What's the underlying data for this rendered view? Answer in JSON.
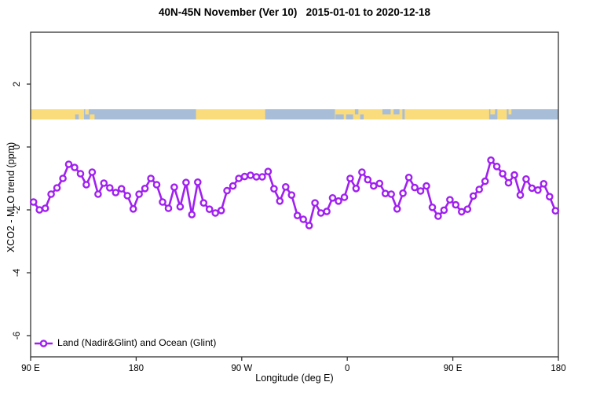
{
  "title": "40N-45N November (Ver 10)   2015-01-01 to 2020-12-18",
  "chart_data": {
    "type": "line",
    "title": "40N-45N November (Ver 10)   2015-01-01 to 2020-12-18",
    "xlabel": "Longitude (deg E)",
    "ylabel": "XCO2 - MLO trend (ppm)",
    "xlim": [
      90,
      540
    ],
    "ylim": [
      -6.675,
      3.65
    ],
    "grid": false,
    "x_ticks": [
      {
        "pos": 90,
        "label": "90 E"
      },
      {
        "pos": 180,
        "label": "180"
      },
      {
        "pos": 270,
        "label": "90 W"
      },
      {
        "pos": 360,
        "label": "0"
      },
      {
        "pos": 450,
        "label": "90 E"
      },
      {
        "pos": 540,
        "label": "180"
      }
    ],
    "y_ticks": [
      {
        "pos": 2,
        "label": "2"
      },
      {
        "pos": 0,
        "label": "0"
      },
      {
        "pos": -2,
        "label": "-2"
      },
      {
        "pos": -4,
        "label": "-4"
      },
      {
        "pos": -6,
        "label": "-6"
      }
    ],
    "legend": {
      "label": "Land (Nadir&Glint) and Ocean (Glint)",
      "position": "bottom-left"
    },
    "series_color": "#A020F0",
    "marker": "open-circle",
    "series": [
      {
        "name": "Land (Nadir&Glint) and Ocean (Glint)",
        "x": [
          92.5,
          97.5,
          102.5,
          107.5,
          112.5,
          117.5,
          122.5,
          127.5,
          132.5,
          137.5,
          142.5,
          147.5,
          152.5,
          157.5,
          162.5,
          167.5,
          172.5,
          177.5,
          182.5,
          187.5,
          192.5,
          197.5,
          202.5,
          207.5,
          212.5,
          217.5,
          222.5,
          227.5,
          232.5,
          237.5,
          242.5,
          247.5,
          252.5,
          257.5,
          262.5,
          267.5,
          272.5,
          277.5,
          282.5,
          287.5,
          292.5,
          297.5,
          302.5,
          307.5,
          312.5,
          317.5,
          322.5,
          327.5,
          332.5,
          337.5,
          342.5,
          347.5,
          352.5,
          357.5,
          362.5,
          367.5,
          372.5,
          377.5,
          382.5,
          387.5,
          392.5,
          397.5,
          402.5,
          407.5,
          412.5,
          417.5,
          422.5,
          427.5,
          432.5,
          437.5,
          442.5,
          447.5,
          452.5,
          457.5,
          462.5,
          467.5,
          472.5,
          477.5,
          482.5,
          487.5,
          492.5,
          497.5,
          502.5,
          507.5,
          512.5,
          517.5,
          522.5,
          527.5,
          532.5,
          537.5
        ],
        "y": [
          -1.75,
          -2.0,
          -1.95,
          -1.5,
          -1.3,
          -1.0,
          -0.55,
          -0.65,
          -0.85,
          -1.2,
          -0.8,
          -1.5,
          -1.15,
          -1.3,
          -1.45,
          -1.33,
          -1.55,
          -1.97,
          -1.5,
          -1.32,
          -1.0,
          -1.2,
          -1.75,
          -1.95,
          -1.28,
          -1.9,
          -1.13,
          -2.15,
          -1.12,
          -1.78,
          -1.98,
          -2.1,
          -2.02,
          -1.39,
          -1.24,
          -1.0,
          -0.94,
          -0.9,
          -0.95,
          -0.95,
          -0.78,
          -1.33,
          -1.72,
          -1.27,
          -1.53,
          -2.18,
          -2.3,
          -2.5,
          -1.78,
          -2.1,
          -2.05,
          -1.62,
          -1.72,
          -1.6,
          -1.0,
          -1.32,
          -0.8,
          -1.04,
          -1.24,
          -1.16,
          -1.48,
          -1.5,
          -1.97,
          -1.47,
          -0.97,
          -1.29,
          -1.4,
          -1.24,
          -1.92,
          -2.2,
          -2.01,
          -1.68,
          -1.84,
          -2.06,
          -1.98,
          -1.56,
          -1.35,
          -1.09,
          -0.42,
          -0.62,
          -0.85,
          -1.14,
          -0.89,
          -1.53,
          -1.02,
          -1.31,
          -1.37,
          -1.17,
          -1.58,
          -2.03
        ]
      }
    ],
    "map_band": {
      "description": "coastline strip for 40N-45N latitude band",
      "y_range_ppm": [
        0.875,
        1.2
      ],
      "land_color": "#FBDC7D",
      "ocean_color": "#A8BDD8",
      "base": "ocean",
      "land_segments": [
        {
          "from": 90,
          "to": 135.5
        },
        {
          "from": 231,
          "to": 290
        },
        {
          "from": 349.5,
          "to": 481
        }
      ],
      "details": [
        {
          "type": "ocean",
          "from": 128,
          "to": 131,
          "part": "bottom"
        },
        {
          "type": "land",
          "from": 136.5,
          "to": 139.5,
          "part": "top"
        },
        {
          "type": "land",
          "from": 140.5,
          "to": 144.5,
          "part": "bottom"
        },
        {
          "type": "ocean",
          "from": 350,
          "to": 357,
          "part": "bottom"
        },
        {
          "type": "ocean",
          "from": 359,
          "to": 365,
          "part": "bottom"
        },
        {
          "type": "ocean",
          "from": 366.5,
          "to": 369.5,
          "part": "top"
        },
        {
          "type": "ocean",
          "from": 371,
          "to": 374,
          "part": "bottom"
        },
        {
          "type": "ocean",
          "from": 390,
          "to": 397,
          "part": "top"
        },
        {
          "type": "ocean",
          "from": 399.5,
          "to": 404.5,
          "part": "top"
        },
        {
          "type": "ocean",
          "from": 407,
          "to": 409,
          "part": "full"
        },
        {
          "type": "land",
          "from": 482,
          "to": 486,
          "part": "top"
        },
        {
          "type": "land",
          "from": 488,
          "to": 496,
          "part": "full"
        },
        {
          "type": "land",
          "from": 497.5,
          "to": 500,
          "part": "top"
        }
      ]
    }
  }
}
